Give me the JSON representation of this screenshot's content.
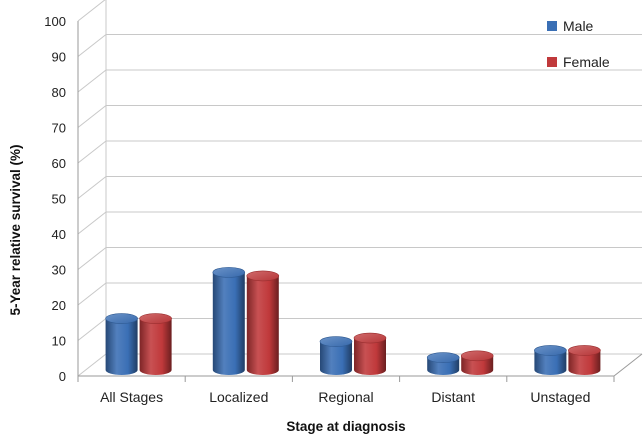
{
  "chart_data": {
    "type": "bar",
    "style": "3d-cylinder",
    "categories": [
      "All Stages",
      "Localized",
      "Regional",
      "Distant",
      "Unstaged"
    ],
    "series": [
      {
        "name": "Male",
        "color": "#3a6fb5",
        "values": [
          14.5,
          27.5,
          8.0,
          3.5,
          5.5
        ]
      },
      {
        "name": "Female",
        "color": "#c0393b",
        "values": [
          14.5,
          26.5,
          9.0,
          4.0,
          5.5
        ]
      }
    ],
    "xlabel": "Stage at diagnosis",
    "ylabel": "5-Year relative survival (%)",
    "ylim": [
      0,
      100
    ],
    "yticks": [
      0,
      10,
      20,
      30,
      40,
      50,
      60,
      70,
      80,
      90,
      100
    ],
    "grid": true,
    "legend": "top-right"
  }
}
